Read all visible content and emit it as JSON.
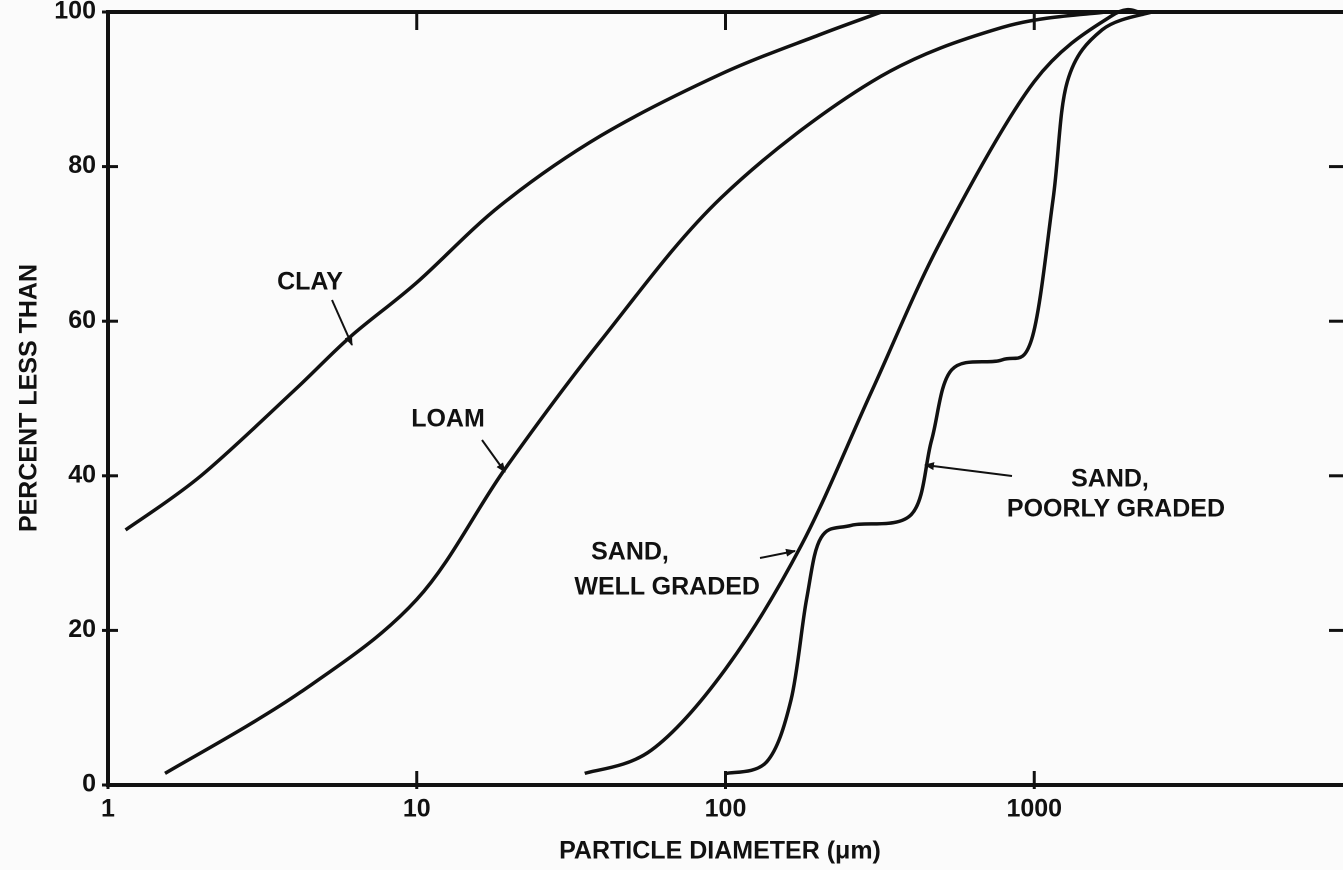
{
  "chart_data": {
    "type": "line",
    "xlabel": "PARTICLE DIAMETER (μm)",
    "ylabel": "PERCENT LESS THAN",
    "xscale": "log",
    "xlim": [
      1,
      10000
    ],
    "ylim": [
      0,
      100
    ],
    "xticks": [
      1,
      10,
      100,
      1000
    ],
    "yticks": [
      0,
      20,
      40,
      60,
      80,
      100
    ],
    "grid": false,
    "series": [
      {
        "name": "CLAY",
        "color": "#111111",
        "x": [
          1.14,
          2,
          4,
          6.1,
          10,
          18.7,
          39.5,
          97,
          200,
          320
        ],
        "values": [
          33,
          40,
          51,
          58,
          65,
          75,
          84,
          92,
          97,
          100
        ]
      },
      {
        "name": "LOAM",
        "color": "#111111",
        "x": [
          1.53,
          4.2,
          10,
          19.4,
          39.5,
          97,
          298,
          787,
          1700
        ],
        "values": [
          1.5,
          12,
          24,
          41,
          57.5,
          76,
          91,
          98,
          100
        ]
      },
      {
        "name": "SAND, WELL GRADED",
        "color": "#111111",
        "x": [
          35,
          57.5,
          100,
          176,
          298,
          500,
          1000,
          1780,
          2200
        ],
        "values": [
          1.5,
          4.5,
          15,
          31,
          51,
          70.5,
          91,
          99.5,
          100
        ]
      },
      {
        "name": "SAND, POORLY GRADED",
        "color": "#111111",
        "x": [
          100.7,
          136,
          163,
          183,
          204,
          256,
          400,
          465,
          540,
          787,
          980,
          1150,
          1280,
          1660,
          2400
        ],
        "values": [
          1.5,
          3,
          11,
          24,
          32,
          33.6,
          35,
          44.6,
          53.7,
          55,
          57.6,
          75.7,
          91,
          97.7,
          100
        ]
      }
    ],
    "annotations": [
      {
        "lines": [
          "CLAY"
        ]
      },
      {
        "lines": [
          "LOAM"
        ]
      },
      {
        "lines": [
          "SAND,",
          "WELL GRADED"
        ]
      },
      {
        "lines": [
          "SAND,",
          "POORLY GRADED"
        ]
      }
    ]
  }
}
